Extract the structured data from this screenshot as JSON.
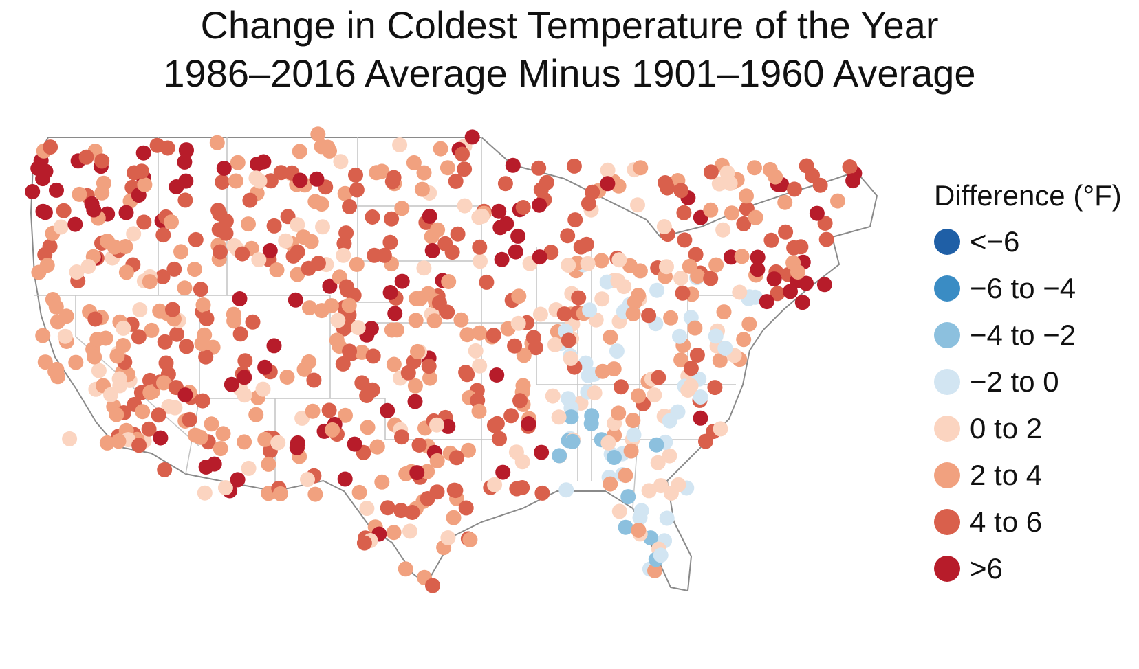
{
  "title": "Change in Coldest Temperature of the Year",
  "subtitle": "1986–2016 Average Minus 1901–1960 Average",
  "legend": {
    "title": "Difference (°F)",
    "items": [
      {
        "label": "<−6",
        "color": "#1f5fa6"
      },
      {
        "label": "−6 to −4",
        "color": "#3a8cc4"
      },
      {
        "label": "−4 to −2",
        "color": "#8cc0de"
      },
      {
        "label": "−2 to 0",
        "color": "#d2e5f2"
      },
      {
        "label": "0 to 2",
        "color": "#fbd4c0"
      },
      {
        "label": "2 to 4",
        "color": "#f1a17f"
      },
      {
        "label": "4 to 6",
        "color": "#d9604c"
      },
      {
        "label": ">6",
        "color": "#b71c2a"
      }
    ]
  }
}
